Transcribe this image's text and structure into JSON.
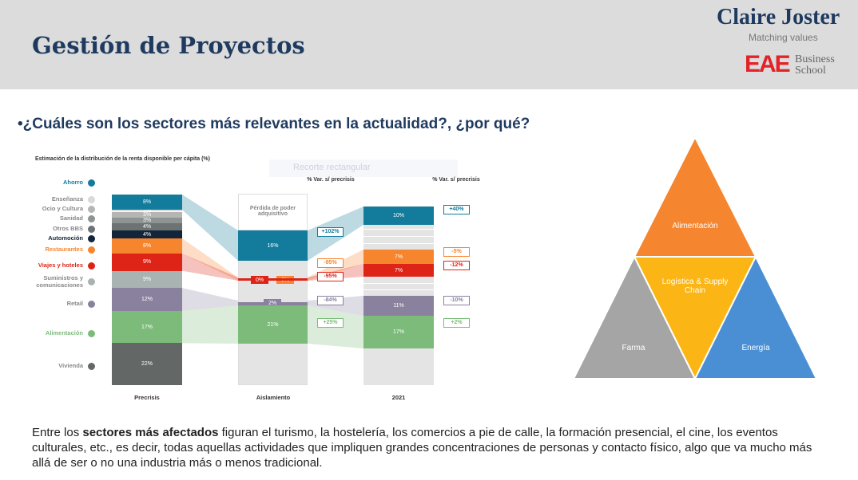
{
  "header": {
    "title": "Gestión de Proyectos",
    "brand": "Claire Joster",
    "tagline": "Matching values",
    "school_logo": "EAE",
    "school_name_1": "Business",
    "school_name_2": "School"
  },
  "question": "•¿Cuáles son los sectores más relevantes en la actualidad?, ¿por qué?",
  "overlay_hint": "Recorte rectangular",
  "chart_data": {
    "type": "bar",
    "title": "Estimación de la distribución de la renta disponible per cápita (%)",
    "categories": [
      "Precrisis",
      "Aislamiento",
      "2021"
    ],
    "aislamiento_top_label": "Pérdida de poder adquisitivo",
    "var_header": "% Var. s/ precrisis",
    "sectors": [
      {
        "name": "Ahorro",
        "color": "#137b9b",
        "precrisis": "8%",
        "aislamiento": "16%",
        "var_aislamiento": "+102%",
        "y2021": "10%",
        "var_2021": "+40%"
      },
      {
        "name": "Enseñanza",
        "color": "#d9d9d9",
        "precrisis": "1%"
      },
      {
        "name": "Ocio y Cultura",
        "color": "#b5b5b5",
        "precrisis": "3%"
      },
      {
        "name": "Sanidad",
        "color": "#8e9393",
        "precrisis": "3%"
      },
      {
        "name": "Otros BBS",
        "color": "#6d7272",
        "precrisis": "4%"
      },
      {
        "name": "Automoción",
        "color": "#13253a",
        "precrisis": "4%"
      },
      {
        "name": "Restaurantes",
        "color": "#f7852e",
        "precrisis": "8%",
        "aislamiento": "0%",
        "var_aislamiento": "-95%",
        "y2021": "7%",
        "var_2021": "-5%"
      },
      {
        "name": "Viajes y hoteles",
        "color": "#dd2416",
        "precrisis": "9%",
        "aislamiento": "0%",
        "var_aislamiento": "-95%",
        "y2021": "7%",
        "var_2021": "-12%"
      },
      {
        "name": "Suministros y comunicaciones",
        "color": "#a9b3b1",
        "precrisis": "9%"
      },
      {
        "name": "Retail",
        "color": "#8a819f",
        "precrisis": "12%",
        "aislamiento": "2%",
        "var_aislamiento": "-84%",
        "y2021": "11%",
        "var_2021": "-10%"
      },
      {
        "name": "Alimentación",
        "color": "#7dbb7b",
        "precrisis": "17%",
        "aislamiento": "21%",
        "var_aislamiento": "+25%",
        "y2021": "17%",
        "var_2021": "+2%"
      },
      {
        "name": "Vivienda",
        "color": "#636867",
        "precrisis": "22%"
      }
    ]
  },
  "diagram": {
    "top": "Alimentación",
    "center": "Logística & Supply Chain",
    "left": "Farma",
    "right": "Energía",
    "colors": {
      "top": "#f5852e",
      "center": "#fbb514",
      "left": "#a5a5a5",
      "right": "#4a8fd3"
    }
  },
  "paragraph": {
    "before": "Entre los ",
    "bold": "sectores más afectados",
    "after": " figuran el turismo, la hostelería, los comercios a pie de calle, la formación presencial, el cine, los eventos culturales, etc., es decir, todas aquellas actividades que impliquen grandes concentraciones de personas y contacto físico, algo que va mucho más allá de ser o no una industria más o menos tradicional."
  }
}
